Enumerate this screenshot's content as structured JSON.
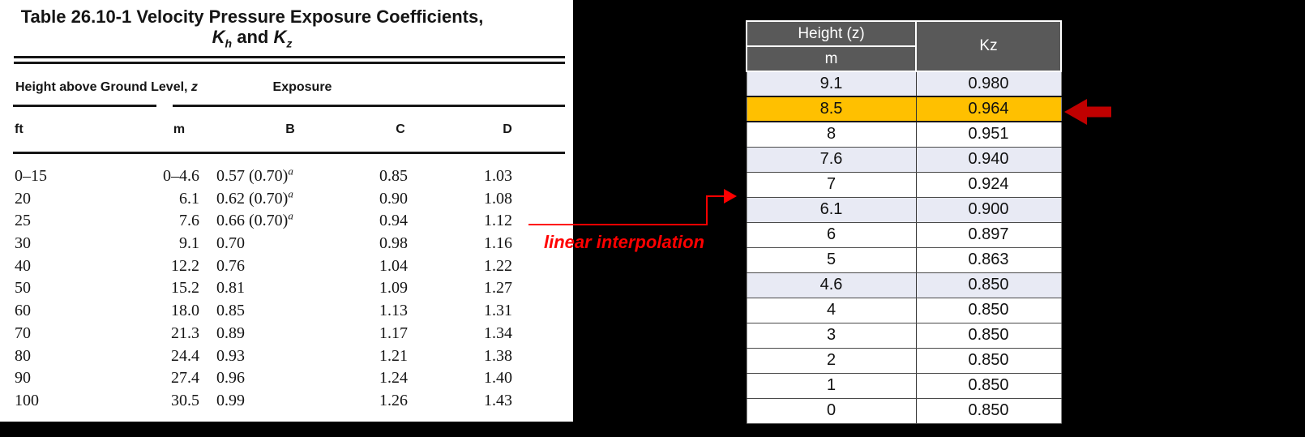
{
  "colors": {
    "highlight": "#FFC000",
    "band": "#E8EAF4",
    "header_gray": "#595959",
    "annotation_red": "#FF0000",
    "arrow_dark_red": "#C00000"
  },
  "left_table": {
    "title_line1": "Table 26.10-1 Velocity Pressure Exposure Coefficients,",
    "title_k1": "K",
    "title_sub1": "h",
    "title_mid": " and ",
    "title_k2": "K",
    "title_sub2": "z",
    "group_height_prefix": "Height above Ground Level, ",
    "group_height_var": "z",
    "group_exposure": "Exposure",
    "col_headers": {
      "ft": "ft",
      "m": "m",
      "b": "B",
      "c": "C",
      "d": "D"
    },
    "rows": [
      {
        "ft": "0–15",
        "m": "0–4.6",
        "b": "0.57 (0.70)",
        "b_sup": "a",
        "c": "0.85",
        "d": "1.03"
      },
      {
        "ft": "20",
        "m": "6.1",
        "b": "0.62 (0.70)",
        "b_sup": "a",
        "c": "0.90",
        "d": "1.08"
      },
      {
        "ft": "25",
        "m": "7.6",
        "b": "0.66 (0.70)",
        "b_sup": "a",
        "c": "0.94",
        "d": "1.12"
      },
      {
        "ft": "30",
        "m": "9.1",
        "b": "0.70",
        "b_sup": "",
        "c": "0.98",
        "d": "1.16"
      },
      {
        "ft": "40",
        "m": "12.2",
        "b": "0.76",
        "b_sup": "",
        "c": "1.04",
        "d": "1.22"
      },
      {
        "ft": "50",
        "m": "15.2",
        "b": "0.81",
        "b_sup": "",
        "c": "1.09",
        "d": "1.27"
      },
      {
        "ft": "60",
        "m": "18.0",
        "b": "0.85",
        "b_sup": "",
        "c": "1.13",
        "d": "1.31"
      },
      {
        "ft": "70",
        "m": "21.3",
        "b": "0.89",
        "b_sup": "",
        "c": "1.17",
        "d": "1.34"
      },
      {
        "ft": "80",
        "m": "24.4",
        "b": "0.93",
        "b_sup": "",
        "c": "1.21",
        "d": "1.38"
      },
      {
        "ft": "90",
        "m": "27.4",
        "b": "0.96",
        "b_sup": "",
        "c": "1.24",
        "d": "1.40"
      },
      {
        "ft": "100",
        "m": "30.5",
        "b": "0.99",
        "b_sup": "",
        "c": "1.26",
        "d": "1.43"
      }
    ]
  },
  "annotation": {
    "label": "linear interpolation"
  },
  "right_table": {
    "header_col1_line1": "Height (z)",
    "header_col1_line2": "m",
    "header_col2": "Kz",
    "rows": [
      {
        "m": "9.1",
        "kz": "0.980",
        "style": "band"
      },
      {
        "m": "8.5",
        "kz": "0.964",
        "style": "highlight"
      },
      {
        "m": "8",
        "kz": "0.951",
        "style": "plain"
      },
      {
        "m": "7.6",
        "kz": "0.940",
        "style": "band"
      },
      {
        "m": "7",
        "kz": "0.924",
        "style": "plain"
      },
      {
        "m": "6.1",
        "kz": "0.900",
        "style": "band"
      },
      {
        "m": "6",
        "kz": "0.897",
        "style": "plain"
      },
      {
        "m": "5",
        "kz": "0.863",
        "style": "plain"
      },
      {
        "m": "4.6",
        "kz": "0.850",
        "style": "band"
      },
      {
        "m": "4",
        "kz": "0.850",
        "style": "plain"
      },
      {
        "m": "3",
        "kz": "0.850",
        "style": "plain"
      },
      {
        "m": "2",
        "kz": "0.850",
        "style": "plain"
      },
      {
        "m": "1",
        "kz": "0.850",
        "style": "plain"
      },
      {
        "m": "0",
        "kz": "0.850",
        "style": "plain"
      }
    ]
  }
}
